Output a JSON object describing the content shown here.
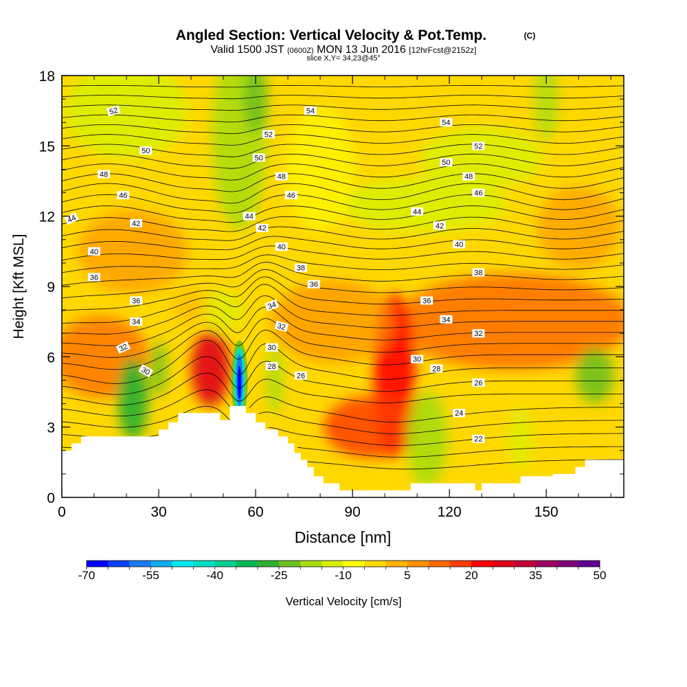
{
  "chart_data": {
    "type": "heatmap",
    "title": "Angled Section: Vertical Velocity & Pot.Temp.",
    "title_mark": "(C)",
    "subtitle_prefix": "Valid 1500 JST",
    "subtitle_utc": "(0600Z)",
    "subtitle_date": "MON 13 Jun 2016",
    "subtitle_fcst": "[12hrFcst@2152z]",
    "slice_label": "slice X,Y= 34,23@45°",
    "xlabel": "Distance [nm]",
    "ylabel": "Height [Kft MSL]",
    "xlim": [
      0,
      174
    ],
    "ylim": [
      0,
      18
    ],
    "x_ticks": [
      0,
      30,
      60,
      90,
      120,
      150
    ],
    "y_ticks": [
      0,
      3,
      6,
      9,
      12,
      15,
      18
    ],
    "grid": false,
    "terrain": [
      [
        0,
        2
      ],
      [
        3,
        2
      ],
      [
        3,
        2.3
      ],
      [
        6,
        2.3
      ],
      [
        6,
        2.6
      ],
      [
        30,
        2.6
      ],
      [
        30,
        2.9
      ],
      [
        33,
        2.9
      ],
      [
        33,
        3.2
      ],
      [
        36,
        3.2
      ],
      [
        36,
        3.6
      ],
      [
        49,
        3.6
      ],
      [
        49,
        3.3
      ],
      [
        52,
        3.3
      ],
      [
        52,
        3.9
      ],
      [
        57,
        3.9
      ],
      [
        57,
        3.6
      ],
      [
        60,
        3.6
      ],
      [
        60,
        3.2
      ],
      [
        63,
        3.2
      ],
      [
        63,
        2.9
      ],
      [
        67,
        2.9
      ],
      [
        67,
        2.6
      ],
      [
        70,
        2.6
      ],
      [
        70,
        2.3
      ],
      [
        72,
        2.3
      ],
      [
        72,
        1.9
      ],
      [
        74,
        1.9
      ],
      [
        74,
        1.6
      ],
      [
        76,
        1.6
      ],
      [
        76,
        1.3
      ],
      [
        78,
        1.3
      ],
      [
        78,
        0.9
      ],
      [
        81,
        0.9
      ],
      [
        81,
        0.6
      ],
      [
        86,
        0.6
      ],
      [
        86,
        0.3
      ],
      [
        108,
        0.3
      ],
      [
        108,
        0.6
      ],
      [
        128,
        0.6
      ],
      [
        128,
        0.3
      ],
      [
        130,
        0.3
      ],
      [
        130,
        0.6
      ],
      [
        142,
        0.6
      ],
      [
        142,
        0.9
      ],
      [
        152,
        0.9
      ],
      [
        152,
        1.0
      ],
      [
        159,
        1.0
      ],
      [
        159,
        1.3
      ],
      [
        162,
        1.3
      ],
      [
        162,
        1.6
      ],
      [
        174,
        1.6
      ]
    ],
    "velocity_scale": {
      "label": "Vertical Velocity [cm/s]",
      "tick_labels": [
        "-70",
        "-55",
        "-40",
        "-25",
        "-10",
        "5",
        "20",
        "35",
        "50"
      ],
      "colors": [
        "#0000ff",
        "#0a40f5",
        "#1a7af0",
        "#10aef0",
        "#00e8f0",
        "#00e0c0",
        "#00d090",
        "#00b858",
        "#30b030",
        "#70c020",
        "#a8dc10",
        "#d8f000",
        "#ffff00",
        "#ffd800",
        "#ffb400",
        "#ff9000",
        "#ff6800",
        "#ff3c00",
        "#ff0000",
        "#e00018",
        "#c00038",
        "#a00060",
        "#80007a",
        "#600090"
      ]
    },
    "velocity_features": [
      {
        "x": 55,
        "z": 5.0,
        "w": -70
      },
      {
        "x": 22,
        "z": 4.2,
        "w": -30
      },
      {
        "x": 46,
        "z": 5.5,
        "w": 28
      },
      {
        "x": 103,
        "z": 5.2,
        "w": 24
      },
      {
        "x": 96,
        "z": 3.0,
        "w": 18
      },
      {
        "x": 140,
        "z": 7.5,
        "w": 14
      },
      {
        "x": 113,
        "z": 2.5,
        "w": -20
      },
      {
        "x": 165,
        "z": 5.2,
        "w": -22
      },
      {
        "x": 55,
        "z": 17,
        "w": -22
      },
      {
        "x": 128,
        "z": 12.5,
        "w": -15
      }
    ],
    "theta_contours": [
      {
        "value": 22,
        "label": "22"
      },
      {
        "value": 24,
        "label": "24"
      },
      {
        "value": 26,
        "label": "26"
      },
      {
        "value": 28,
        "label": "28"
      },
      {
        "value": 30,
        "label": "30"
      },
      {
        "value": 32,
        "label": "32"
      },
      {
        "value": 34,
        "label": "34"
      },
      {
        "value": 36,
        "label": "36"
      },
      {
        "value": 38,
        "label": "38"
      },
      {
        "value": 40,
        "label": "40"
      },
      {
        "value": 42,
        "label": "42"
      },
      {
        "value": 44,
        "label": "44"
      },
      {
        "value": 46,
        "label": "46"
      },
      {
        "value": 48,
        "label": "48"
      },
      {
        "value": 50,
        "label": "50"
      },
      {
        "value": 52,
        "label": "52"
      },
      {
        "value": 54,
        "label": "54"
      }
    ],
    "contour_labels": [
      {
        "text": "52",
        "x": 16,
        "z": 16.5,
        "rot": 15
      },
      {
        "text": "54",
        "x": 77,
        "z": 16.5,
        "rot": 0
      },
      {
        "text": "54",
        "x": 119,
        "z": 16.0,
        "rot": 0
      },
      {
        "text": "52",
        "x": 64,
        "z": 15.5,
        "rot": 0
      },
      {
        "text": "52",
        "x": 129,
        "z": 15.0,
        "rot": 0
      },
      {
        "text": "50",
        "x": 26,
        "z": 14.8,
        "rot": 0
      },
      {
        "text": "50",
        "x": 61,
        "z": 14.5,
        "rot": 0
      },
      {
        "text": "50",
        "x": 119,
        "z": 14.3,
        "rot": 0
      },
      {
        "text": "48",
        "x": 13,
        "z": 13.8,
        "rot": 0
      },
      {
        "text": "48",
        "x": 68,
        "z": 13.7,
        "rot": 0
      },
      {
        "text": "48",
        "x": 126,
        "z": 13.7,
        "rot": 0
      },
      {
        "text": "46",
        "x": 19,
        "z": 12.9,
        "rot": 0
      },
      {
        "text": "46",
        "x": 71,
        "z": 12.9,
        "rot": 0
      },
      {
        "text": "46",
        "x": 129,
        "z": 13.0,
        "rot": 0
      },
      {
        "text": "44",
        "x": 3,
        "z": 11.9,
        "rot": 25
      },
      {
        "text": "44",
        "x": 58,
        "z": 12.0,
        "rot": 0
      },
      {
        "text": "44",
        "x": 110,
        "z": 12.2,
        "rot": 0
      },
      {
        "text": "42",
        "x": 23,
        "z": 11.7,
        "rot": 0
      },
      {
        "text": "42",
        "x": 62,
        "z": 11.5,
        "rot": 0
      },
      {
        "text": "42",
        "x": 117,
        "z": 11.6,
        "rot": 0
      },
      {
        "text": "40",
        "x": 10,
        "z": 10.5,
        "rot": 0
      },
      {
        "text": "40",
        "x": 68,
        "z": 10.7,
        "rot": 0
      },
      {
        "text": "40",
        "x": 123,
        "z": 10.8,
        "rot": 0
      },
      {
        "text": "38",
        "x": 74,
        "z": 9.8,
        "rot": 0
      },
      {
        "text": "38",
        "x": 129,
        "z": 9.6,
        "rot": 0
      },
      {
        "text": "36",
        "x": 10,
        "z": 9.4,
        "rot": 0
      },
      {
        "text": "36",
        "x": 78,
        "z": 9.1,
        "rot": 0
      },
      {
        "text": "36",
        "x": 23,
        "z": 8.4,
        "rot": 0
      },
      {
        "text": "36",
        "x": 113,
        "z": 8.4,
        "rot": 0
      },
      {
        "text": "34",
        "x": 65,
        "z": 8.2,
        "rot": 20
      },
      {
        "text": "34",
        "x": 23,
        "z": 7.5,
        "rot": 0
      },
      {
        "text": "34",
        "x": 119,
        "z": 7.6,
        "rot": 0
      },
      {
        "text": "32",
        "x": 68,
        "z": 7.3,
        "rot": -15
      },
      {
        "text": "32",
        "x": 129,
        "z": 7.0,
        "rot": 0
      },
      {
        "text": "32",
        "x": 19,
        "z": 6.4,
        "rot": 25
      },
      {
        "text": "30",
        "x": 65,
        "z": 6.4,
        "rot": 0
      },
      {
        "text": "30",
        "x": 110,
        "z": 5.9,
        "rot": 0
      },
      {
        "text": "30",
        "x": 26,
        "z": 5.4,
        "rot": -30
      },
      {
        "text": "28",
        "x": 65,
        "z": 5.6,
        "rot": 0
      },
      {
        "text": "28",
        "x": 116,
        "z": 5.5,
        "rot": 0
      },
      {
        "text": "26",
        "x": 74,
        "z": 5.2,
        "rot": 0
      },
      {
        "text": "26",
        "x": 129,
        "z": 4.9,
        "rot": 0
      },
      {
        "text": "24",
        "x": 123,
        "z": 3.6,
        "rot": 0
      },
      {
        "text": "22",
        "x": 129,
        "z": 2.5,
        "rot": 0
      }
    ]
  }
}
